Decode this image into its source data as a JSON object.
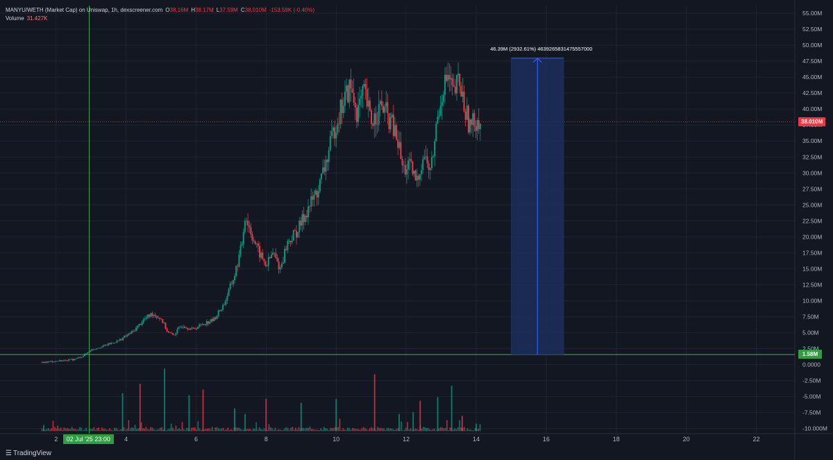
{
  "legend": {
    "title": "MANYU/WETH (Market Cap) on Uniswap, 1h, dexscreener.com",
    "o_label": "O",
    "o_value": "38.16M",
    "h_label": "H",
    "h_value": "38.17M",
    "l_label": "L",
    "l_value": "37.59M",
    "c_label": "C",
    "c_value": "38.010M",
    "change": "-153.59K (-0.40%)",
    "volume_label": "Volume",
    "volume_value": "31.427K"
  },
  "measure": {
    "label": "46.39M (2932.61%) 4639265831475557000"
  },
  "price_tags": {
    "last": "38.010M",
    "level": "1.58M"
  },
  "crosshair_time": "02 Jul '25  23:00",
  "brand": "TradingView",
  "colors": {
    "background": "#131722",
    "up": "#089981",
    "down": "#f23645",
    "crosshair": "#4caf50",
    "measure_fill": "#1c2e5c",
    "measure_line": "#2962ff"
  },
  "chart_data": {
    "type": "candlestick",
    "unit": "M",
    "y_axis_ticks": [
      "55.00M",
      "52.50M",
      "50.00M",
      "47.50M",
      "45.00M",
      "42.50M",
      "40.00M",
      "37.50M",
      "35.00M",
      "32.50M",
      "30.00M",
      "27.50M",
      "25.00M",
      "22.50M",
      "20.00M",
      "17.50M",
      "15.00M",
      "12.50M",
      "10.00M",
      "7.50M",
      "5.00M",
      "2.50M",
      "0.0000",
      "-2.50M",
      "-5.00M",
      "-7.50M",
      "-10.000M"
    ],
    "y_axis_values": [
      55,
      52.5,
      50,
      47.5,
      45,
      42.5,
      40,
      37.5,
      35,
      32.5,
      30,
      27.5,
      25,
      22.5,
      20,
      17.5,
      15,
      12.5,
      10,
      7.5,
      5,
      2.5,
      0,
      -2.5,
      -5,
      -7.5,
      -10
    ],
    "x_axis_ticks": [
      "2",
      "4",
      "6",
      "8",
      "10",
      "12",
      "14",
      "16",
      "18",
      "20",
      "22"
    ],
    "x_axis_values": [
      2,
      4,
      6,
      8,
      10,
      12,
      14,
      16,
      18,
      20,
      22
    ],
    "xlim": [
      0.4,
      23.1
    ],
    "ylim": [
      -10.8,
      56.2
    ],
    "price_path": [
      [
        1.6,
        0.35
      ],
      [
        2.0,
        0.55
      ],
      [
        2.5,
        0.8
      ],
      [
        2.75,
        1.3
      ],
      [
        3.0,
        2.3
      ],
      [
        3.4,
        3.0
      ],
      [
        3.8,
        3.8
      ],
      [
        4.2,
        5.2
      ],
      [
        4.5,
        7.0
      ],
      [
        4.75,
        8.0
      ],
      [
        5.0,
        7.2
      ],
      [
        5.2,
        5.0
      ],
      [
        5.35,
        4.6
      ],
      [
        5.6,
        6.2
      ],
      [
        5.9,
        5.5
      ],
      [
        6.2,
        6.4
      ],
      [
        6.5,
        7.0
      ],
      [
        6.8,
        9.5
      ],
      [
        7.1,
        14.0
      ],
      [
        7.3,
        18.5
      ],
      [
        7.4,
        23.5
      ],
      [
        7.55,
        21.0
      ],
      [
        7.75,
        18.0
      ],
      [
        8.0,
        15.5
      ],
      [
        8.2,
        17.5
      ],
      [
        8.4,
        15.0
      ],
      [
        8.6,
        19.0
      ],
      [
        8.9,
        21.0
      ],
      [
        9.2,
        24.5
      ],
      [
        9.5,
        27.5
      ],
      [
        9.8,
        33.5
      ],
      [
        10.0,
        38.0
      ],
      [
        10.2,
        41.0
      ],
      [
        10.4,
        43.5
      ],
      [
        10.6,
        39.5
      ],
      [
        10.8,
        42.5
      ],
      [
        11.0,
        38.0
      ],
      [
        11.3,
        40.5
      ],
      [
        11.6,
        37.5
      ],
      [
        11.8,
        34.0
      ],
      [
        11.9,
        30.5
      ],
      [
        12.1,
        31.0
      ],
      [
        12.3,
        28.5
      ],
      [
        12.5,
        33.0
      ],
      [
        12.7,
        30.0
      ],
      [
        12.9,
        39.0
      ],
      [
        13.05,
        43.5
      ],
      [
        13.2,
        45.0
      ],
      [
        13.35,
        42.0
      ],
      [
        13.5,
        44.5
      ],
      [
        13.7,
        39.5
      ],
      [
        13.85,
        37.0
      ],
      [
        14.0,
        38.5
      ],
      [
        14.15,
        38.01
      ]
    ],
    "volume_spikes": [
      [
        1.65,
        1.6
      ],
      [
        3.9,
        10.0
      ],
      [
        4.4,
        12.5
      ],
      [
        5.1,
        16.5
      ],
      [
        5.8,
        9.5
      ],
      [
        6.2,
        11.0
      ],
      [
        7.1,
        6.0
      ],
      [
        7.4,
        4.5
      ],
      [
        8.0,
        8.5
      ],
      [
        9.0,
        7.5
      ],
      [
        10.0,
        8.5
      ],
      [
        11.1,
        15.0
      ],
      [
        11.8,
        4.5
      ],
      [
        12.2,
        5.0
      ],
      [
        12.4,
        8.0
      ],
      [
        12.9,
        9.0
      ],
      [
        13.3,
        12.0
      ],
      [
        13.6,
        4.0
      ],
      [
        14.0,
        2.0
      ]
    ],
    "measure_range": {
      "x_start": 15.0,
      "x_end": 16.5,
      "y_start": 1.58,
      "y_end": 47.97
    },
    "horizontal_level": 1.58,
    "last_price": 38.01,
    "crosshair_x": 2.95
  }
}
